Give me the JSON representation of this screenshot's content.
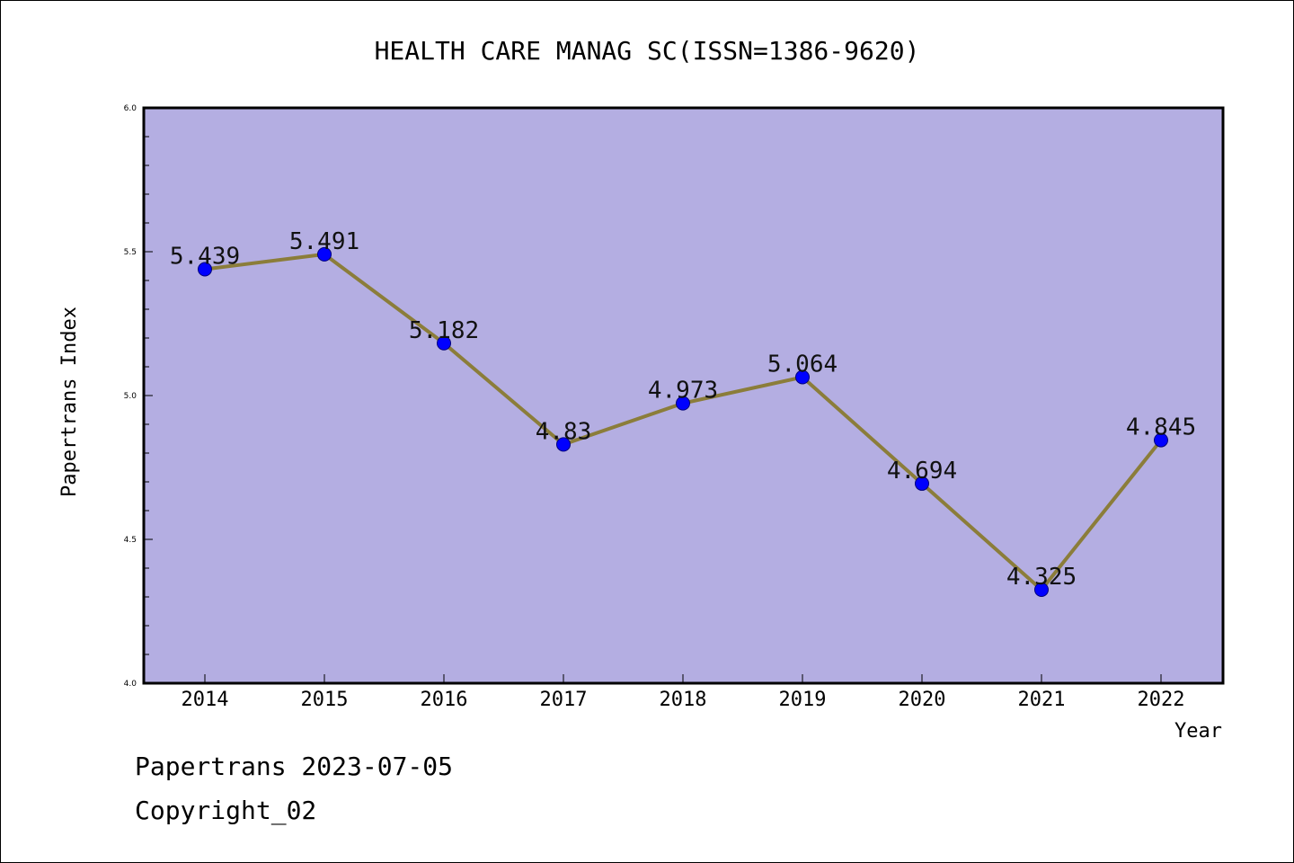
{
  "colors": {
    "plot_background": "#b4aee2",
    "line": "#8b7d3a",
    "marker": "#0000ff"
  },
  "footer": {
    "source_line": "Papertrans 2023-07-05",
    "copyright": "Copyright_02"
  },
  "chart_data": {
    "type": "line",
    "title": "HEALTH CARE MANAG SC(ISSN=1386-9620)",
    "xlabel": "Year",
    "ylabel": "Papertrans Index",
    "ylim": [
      4.0,
      6.0
    ],
    "y_ticks": [
      "4.0",
      "4.5",
      "5.0",
      "5.5",
      "6.0"
    ],
    "categories": [
      "2014",
      "2015",
      "2016",
      "2017",
      "2018",
      "2019",
      "2020",
      "2021",
      "2022"
    ],
    "values": [
      5.439,
      5.491,
      5.182,
      4.83,
      4.973,
      5.064,
      4.694,
      4.325,
      4.845
    ],
    "value_labels": [
      "5.439",
      "5.491",
      "5.182",
      "4.83",
      "4.973",
      "5.064",
      "4.694",
      "4.325",
      "4.845"
    ],
    "grid": false,
    "markers": "circle"
  }
}
